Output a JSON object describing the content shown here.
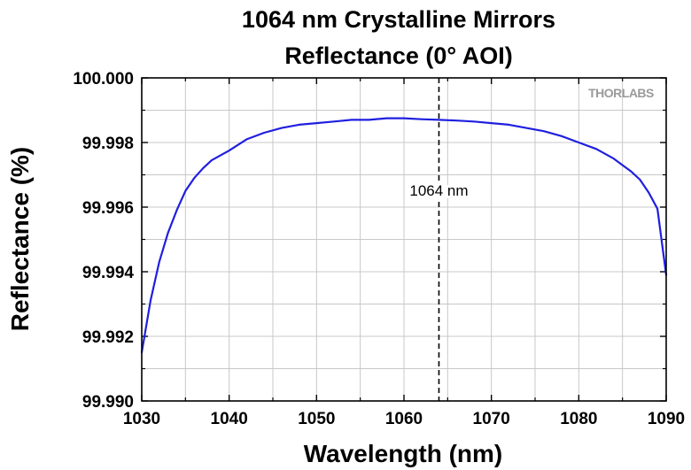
{
  "chart_data": {
    "type": "line",
    "title": "1064 nm Crystalline Mirrors",
    "subtitle": "Reflectance (0° AOI)",
    "xlabel": "Wavelength (nm)",
    "ylabel": "Reflectance (%)",
    "xlim": [
      1030,
      1090
    ],
    "ylim": [
      99.99,
      100.0
    ],
    "xticks": [
      1030,
      1040,
      1050,
      1060,
      1070,
      1080,
      1090
    ],
    "xtick_labels": [
      "1030",
      "1040",
      "1050",
      "1060",
      "1070",
      "1080",
      "1090"
    ],
    "yticks": [
      99.99,
      99.992,
      99.994,
      99.996,
      99.998,
      100.0
    ],
    "ytick_labels": [
      "99.990",
      "99.992",
      "99.994",
      "99.996",
      "99.998",
      "100.000"
    ],
    "grid": true,
    "series_color": "#1f1fe0",
    "series": [
      {
        "x": [
          1030,
          1031,
          1032,
          1033,
          1034,
          1035,
          1036,
          1037,
          1038,
          1040,
          1042,
          1044,
          1046,
          1048,
          1050,
          1052,
          1054,
          1056,
          1058,
          1060,
          1062,
          1064,
          1066,
          1068,
          1070,
          1072,
          1074,
          1076,
          1078,
          1080,
          1082,
          1084,
          1085,
          1086,
          1087,
          1088,
          1089,
          1090
        ],
        "y": [
          99.9915,
          99.9931,
          99.9943,
          99.9952,
          99.9959,
          99.9965,
          99.9969,
          99.9972,
          99.99745,
          99.99775,
          99.9981,
          99.9983,
          99.99845,
          99.99855,
          99.9986,
          99.99865,
          99.9987,
          99.9987,
          99.99875,
          99.99875,
          99.99872,
          99.9987,
          99.99868,
          99.99865,
          99.9986,
          99.99855,
          99.99845,
          99.99835,
          99.9982,
          99.998,
          99.9978,
          99.9975,
          99.9973,
          99.9971,
          99.99685,
          99.99645,
          99.99595,
          99.9939
        ]
      }
    ],
    "annotations": [
      {
        "text": "1064 nm",
        "x": 1064,
        "style": "dashed-vertical-line"
      }
    ],
    "logo_text": "THORLABS"
  }
}
